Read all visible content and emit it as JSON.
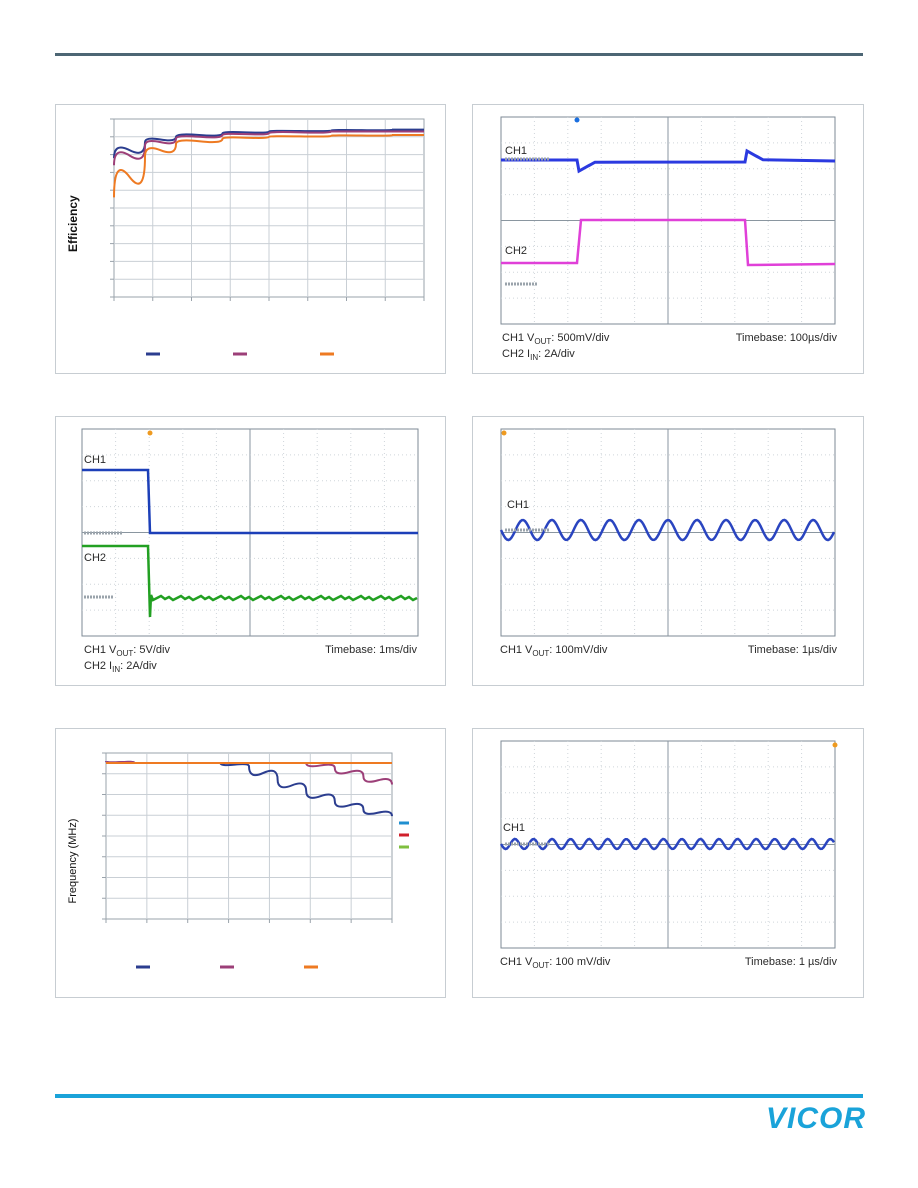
{
  "brand": {
    "logo_text": "VICOR",
    "rule_color": "#1aa3d9",
    "header_rule_color": "#4d6674"
  },
  "efficiency_chart": {
    "chart_data": {
      "type": "line",
      "ylabel": "Efficiency",
      "xlabel": "",
      "title": "",
      "grid": true,
      "legend_placement": "bottom",
      "series": [
        {
          "color": "#2b3d8f",
          "x": [
            0.0,
            0.1,
            0.2,
            0.35,
            0.5,
            0.7,
            0.9,
            1.0
          ],
          "y": [
            0.78,
            0.87,
            0.9,
            0.92,
            0.93,
            0.935,
            0.94,
            0.94
          ]
        },
        {
          "color": "#9c3f78",
          "x": [
            0.0,
            0.1,
            0.2,
            0.35,
            0.5,
            0.7,
            0.9,
            1.0
          ],
          "y": [
            0.74,
            0.85,
            0.89,
            0.91,
            0.92,
            0.93,
            0.93,
            0.93
          ]
        },
        {
          "color": "#ee7a22",
          "x": [
            0.0,
            0.1,
            0.2,
            0.35,
            0.5,
            0.7,
            0.9,
            1.0
          ],
          "y": [
            0.56,
            0.79,
            0.86,
            0.89,
            0.9,
            0.905,
            0.91,
            0.91
          ]
        }
      ]
    }
  },
  "scope_transient": {
    "ch1_label": "CH1",
    "ch2_label": "CH2",
    "caption_left_line1": {
      "pre": "CH1 V",
      "sub": "OUT",
      "post": ": 500mV/div"
    },
    "caption_left_line2": {
      "pre": "CH2 I",
      "sub": "IN",
      "post": ": 2A/div"
    },
    "caption_right": "Timebase: 100µs/div",
    "ch1_color": "#2b3ae0",
    "ch2_color": "#e040d8"
  },
  "scope_startup": {
    "ch1_label": "CH1",
    "ch2_label": "CH2",
    "caption_left_line1": {
      "pre": "CH1 V",
      "sub": "OUT",
      "post": ": 5V/div"
    },
    "caption_left_line2": {
      "pre": "CH2 I",
      "sub": "IN",
      "post": ": 2A/div"
    },
    "caption_right": "Timebase: 1ms/div",
    "ch1_color": "#1c3fb8",
    "ch2_color": "#22a022"
  },
  "scope_ripple_1": {
    "ch1_label": "CH1",
    "caption_left_line1": {
      "pre": "CH1 V",
      "sub": "OUT",
      "post": ": 100mV/div"
    },
    "caption_right": "Timebase: 1µs/div",
    "ch1_color": "#2a45c0"
  },
  "frequency_chart": {
    "chart_data": {
      "type": "line",
      "ylabel": "Frequency (MHz)",
      "xlabel": "",
      "title": "",
      "grid": true,
      "legend_placement": "bottom",
      "series": [
        {
          "color": "#2b3d8f",
          "x": [
            0.0,
            0.1,
            0.2,
            0.3,
            0.4,
            0.5,
            0.6,
            0.7,
            0.8,
            0.9,
            1.0
          ],
          "y": [
            0.95,
            0.94,
            0.94,
            0.94,
            0.94,
            0.92,
            0.84,
            0.77,
            0.71,
            0.66,
            0.62
          ]
        },
        {
          "color": "#9c3f78",
          "x": [
            0.0,
            0.1,
            0.2,
            0.3,
            0.4,
            0.5,
            0.6,
            0.7,
            0.8,
            0.9,
            1.0
          ],
          "y": [
            0.95,
            0.94,
            0.94,
            0.94,
            0.94,
            0.94,
            0.94,
            0.94,
            0.91,
            0.86,
            0.81
          ]
        },
        {
          "color": "#ee7a22",
          "x": [
            0.0,
            0.1,
            0.2,
            0.3,
            0.4,
            0.5,
            0.6,
            0.7,
            0.8,
            0.9,
            1.0
          ],
          "y": [
            0.94,
            0.94,
            0.94,
            0.94,
            0.94,
            0.94,
            0.94,
            0.94,
            0.94,
            0.94,
            0.94
          ]
        }
      ],
      "side_legend_colors": [
        "#1f8fd0",
        "#d0202c",
        "#7fbf3f"
      ]
    }
  },
  "scope_ripple_2": {
    "ch1_label": "CH1",
    "caption_left_line1": {
      "pre": "CH1 V",
      "sub": "OUT",
      "post": ": 100 mV/div"
    },
    "caption_right": "Timebase: 1 µs/div",
    "ch1_color": "#2a45c0"
  }
}
